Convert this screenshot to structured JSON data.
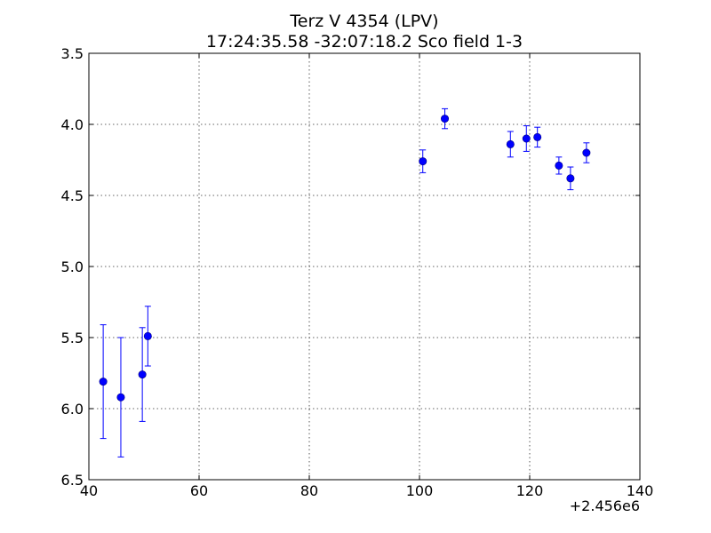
{
  "chart_data": {
    "type": "scatter",
    "title": "Terz V 4354  (LPV)",
    "subtitle": "17:24:35.58 -32:07:18.2 Sco field 1-3",
    "xlim": [
      40,
      140
    ],
    "ylim": [
      3.5,
      6.5
    ],
    "y_inverted": true,
    "x_offset_label": "+2.456e6",
    "xticks": [
      40,
      60,
      80,
      100,
      120,
      140
    ],
    "yticks": [
      3.5,
      4.0,
      4.5,
      5.0,
      5.5,
      6.0,
      6.5
    ],
    "xtick_labels": [
      "40",
      "60",
      "80",
      "100",
      "120",
      "140"
    ],
    "ytick_labels": [
      "3.5",
      "4.0",
      "4.5",
      "5.0",
      "5.5",
      "6.0",
      "6.5"
    ],
    "grid": true,
    "marker_color": "#0000ff",
    "points": [
      {
        "x": 42.6,
        "y": 5.81,
        "err": 0.4
      },
      {
        "x": 45.8,
        "y": 5.92,
        "err": 0.42
      },
      {
        "x": 49.7,
        "y": 5.76,
        "err": 0.33
      },
      {
        "x": 50.7,
        "y": 5.49,
        "err": 0.21
      },
      {
        "x": 100.6,
        "y": 4.26,
        "err": 0.08
      },
      {
        "x": 104.6,
        "y": 3.96,
        "err": 0.07
      },
      {
        "x": 116.5,
        "y": 4.14,
        "err": 0.09
      },
      {
        "x": 119.4,
        "y": 4.1,
        "err": 0.09
      },
      {
        "x": 121.4,
        "y": 4.09,
        "err": 0.07
      },
      {
        "x": 125.3,
        "y": 4.29,
        "err": 0.06
      },
      {
        "x": 127.4,
        "y": 4.38,
        "err": 0.08
      },
      {
        "x": 130.3,
        "y": 4.2,
        "err": 0.07
      }
    ]
  }
}
